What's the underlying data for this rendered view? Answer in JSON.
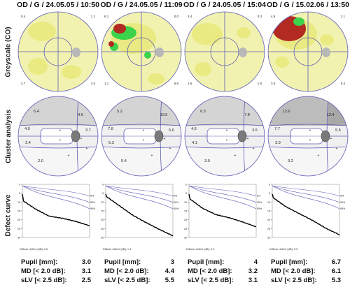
{
  "row_labels": {
    "greyscale": "Greyscale (CO)",
    "cluster": "Cluster analysis",
    "defect": "Defect curve"
  },
  "stat_labels": {
    "pupil": "Pupil [mm]:",
    "md": "MD [< 2.0 dB]:",
    "slv": "sLV [< 2.5 dB]:"
  },
  "exams": [
    {
      "title": "OD / G / 24.05.05 / 10:50",
      "corner_tl": "5.4",
      "corner_tr": "1.1",
      "corner_bl": "2.7",
      "corner_br": "1.5",
      "cluster": [
        "6.4",
        "4.6",
        "4.0",
        "3.7",
        "2.4",
        "2.0"
      ],
      "diffuse": "Diffuse defect [dB]: 2.6",
      "pupil": "3.0",
      "md": "3.1",
      "slv": "2.5",
      "curve_drop": [
        0.3,
        0.47,
        0.6,
        0.64,
        0.7,
        0.78
      ]
    },
    {
      "title": "OD / G / 24.05.05 / 11:09",
      "corner_tl": "6.1",
      "corner_tr": "0.0",
      "corner_bl": "1.1",
      "corner_br": "6.6",
      "cluster": [
        "5.2",
        "10.5",
        "7.8",
        "5.6",
        "5.3",
        "5.4"
      ],
      "diffuse": "Diffuse defect [dB]: 1.4",
      "pupil": "3",
      "md": "4.4",
      "slv": "5.5",
      "curve_drop": [
        0.22,
        0.4,
        0.58,
        0.72,
        0.85,
        0.97
      ]
    },
    {
      "title": "OD / G / 24.05.05 / 15:04",
      "corner_tl": "2.4",
      "corner_tr": "0.3",
      "corner_bl": "1.6",
      "corner_br": "1.8",
      "cluster": [
        "6.3",
        "7.8",
        "4.6",
        "3.5",
        "4.1",
        "3.9"
      ],
      "diffuse": "Diffuse defect [dB]: 2.4",
      "pupil": "4",
      "md": "3.2",
      "slv": "3.1",
      "curve_drop": [
        0.26,
        0.45,
        0.57,
        0.63,
        0.71,
        0.8
      ]
    },
    {
      "title": "OD / G / 15.02.06 / 13:50",
      "corner_tl": "4.8",
      "corner_tr": "1.1",
      "corner_bl": "3.0",
      "corner_br": "5.4",
      "cluster": [
        "12.6",
        "12.4",
        "7.7",
        "5.5",
        "3.9",
        "3.2"
      ],
      "diffuse": "Diffuse defect [dB]: 3.0",
      "pupil": "6.7",
      "md": "6.1",
      "slv": "5.3",
      "curve_drop": [
        0.24,
        0.42,
        0.55,
        0.68,
        0.83,
        0.95
      ]
    }
  ],
  "defect_axis": {
    "y_ticks": [
      "0",
      "5",
      "10",
      "15",
      "20",
      "25",
      "30"
    ],
    "pct": [
      "5%",
      "50%",
      "95%"
    ]
  },
  "colors": {
    "circle_line": "#5a5ab4",
    "ring_yellow": "#f2f2b0",
    "patch_yellow": "#e4e35c",
    "defect_green": "#3bd34b",
    "defect_red": "#b22a22",
    "blind_spot": "#b8b8b8",
    "cluster_grey": "#d4d4d4",
    "cluster_light": "#f0f0f0",
    "curve_line": "#000000",
    "norm_line": "#5a5ab4"
  }
}
